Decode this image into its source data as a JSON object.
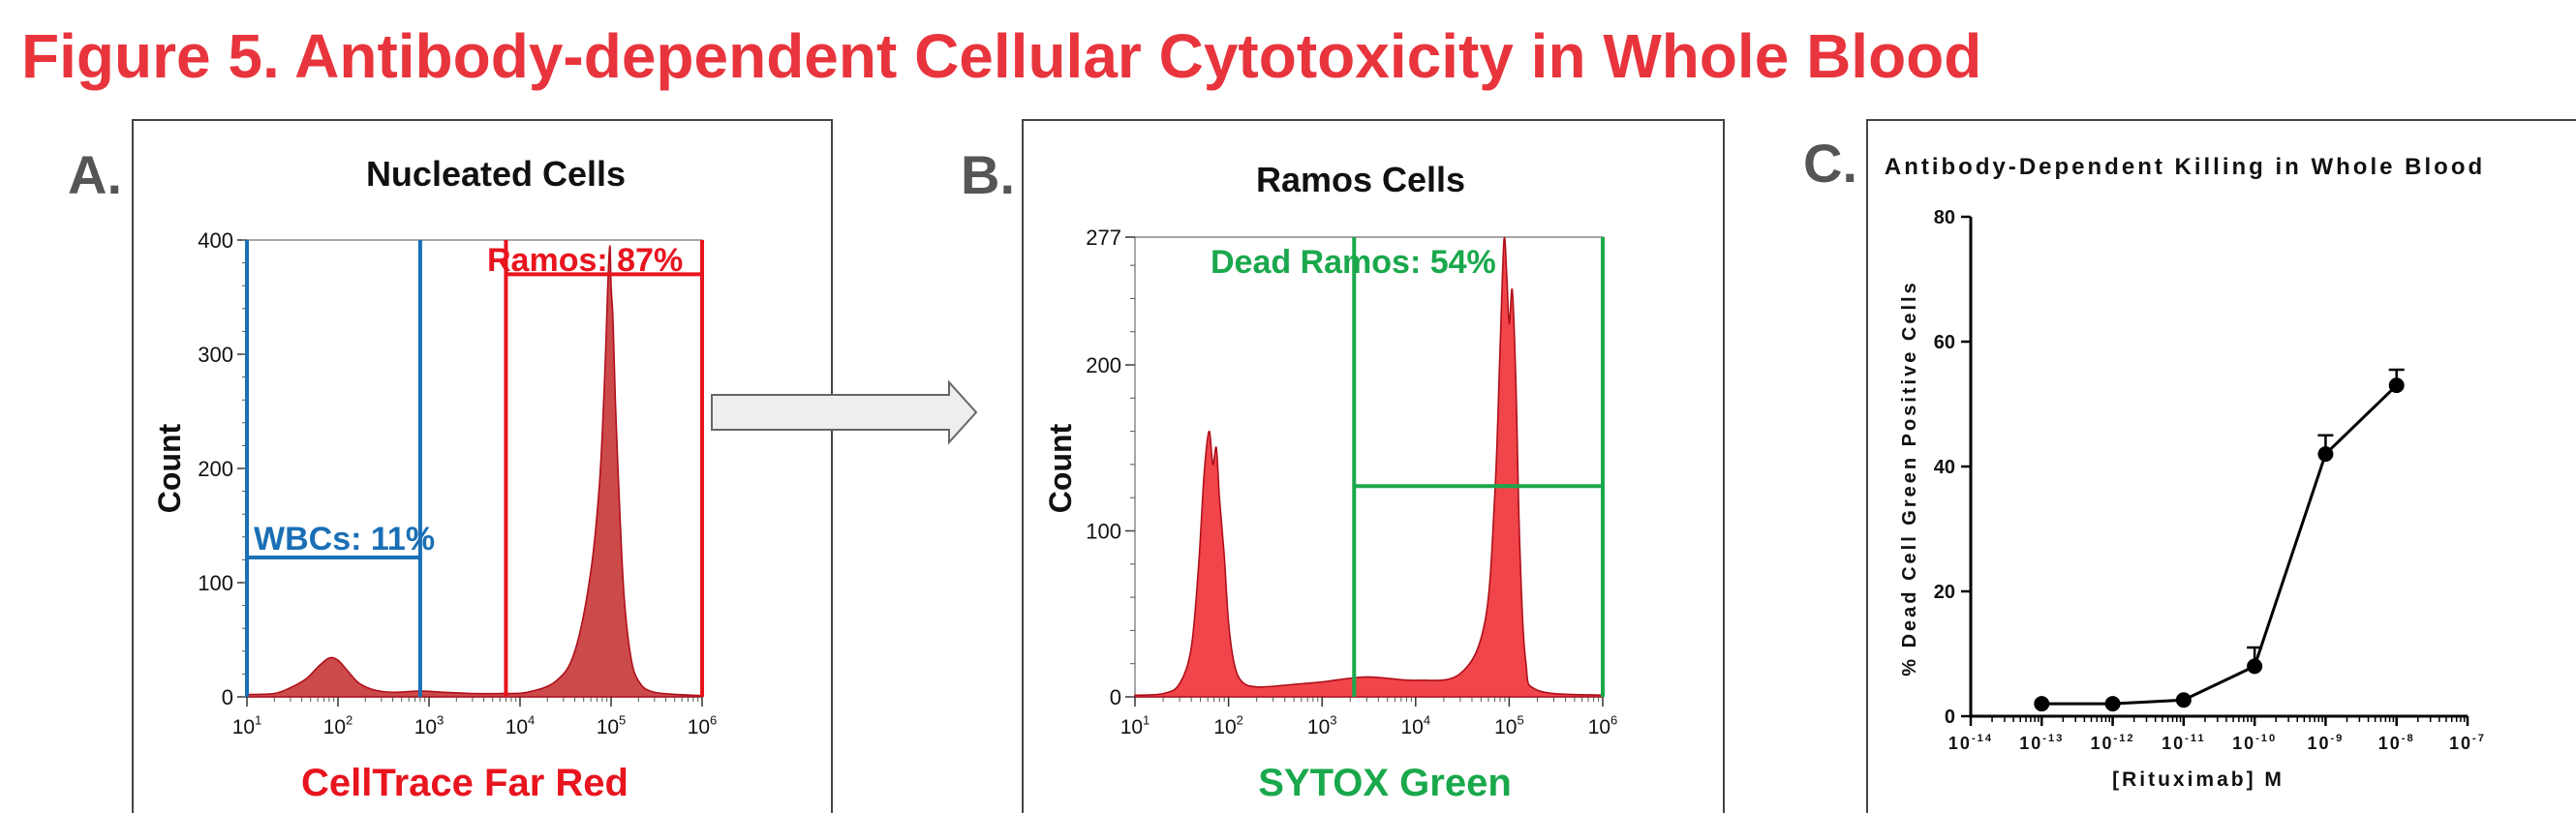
{
  "figure_title": "Figure 5. Antibody-dependent Cellular Cytotoxicity in Whole Blood",
  "colors": {
    "title_red": "#e8343c",
    "panel_letter": "#555555",
    "wbc_blue": "#1a6fb5",
    "ramos_red": "#e8141e",
    "dead_green": "#1aa84c",
    "hist_fill_a": "#cc4a4a",
    "hist_fill_b": "#f0454a",
    "arrow_fill": "#eeeeee"
  },
  "panels": {
    "a": {
      "letter": "A.",
      "title": "Nucleated Cells",
      "ylabel": "Count",
      "xlabel": "CellTrace Far Red",
      "wbc_gate_label": "WBCs: 11%",
      "ramos_gate_label": "Ramos: 87%"
    },
    "b": {
      "letter": "B.",
      "title": "Ramos Cells",
      "ylabel": "Count",
      "xlabel": "SYTOX Green",
      "dead_gate_label": "Dead Ramos: 54%"
    },
    "c": {
      "letter": "C.",
      "title": "Antibody-Dependent Killing in Whole Blood",
      "ylabel": "% Dead Cell Green Positive Cells",
      "xlabel": "[Rituximab] M"
    }
  },
  "chart_data": [
    {
      "type": "area",
      "title": "Nucleated Cells",
      "xlabel": "CellTrace Far Red",
      "ylabel": "Count",
      "x_scale": "log",
      "xlim": [
        10,
        1000000
      ],
      "ylim": [
        0,
        400
      ],
      "y_ticks": [
        0,
        100,
        200,
        300,
        400
      ],
      "x_tick_labels": [
        {
          "base": "10",
          "exp": "1"
        },
        {
          "base": "10",
          "exp": "2"
        },
        {
          "base": "10",
          "exp": "3"
        },
        {
          "base": "10",
          "exp": "4"
        },
        {
          "base": "10",
          "exp": "5"
        },
        {
          "base": "10",
          "exp": "6"
        }
      ],
      "gates": [
        {
          "name": "WBCs: 11%",
          "from": 10,
          "to": 800,
          "level": 122
        },
        {
          "name": "Ramos: 87%",
          "from": 7000,
          "to": 1000000,
          "level": 370
        }
      ],
      "series": [
        {
          "x": [
            10,
            20,
            30,
            45,
            60,
            80,
            100,
            130,
            170,
            250,
            400,
            800,
            1500,
            3000,
            6000,
            12000,
            25000,
            40000,
            60000,
            75000,
            85000,
            92000,
            97000,
            100000,
            105000,
            112000,
            125000,
            140000,
            165000,
            200000,
            300000,
            1000000
          ],
          "y": [
            2,
            3,
            8,
            16,
            26,
            34,
            32,
            22,
            12,
            6,
            4,
            5,
            4,
            3,
            3,
            4,
            14,
            40,
            110,
            190,
            280,
            360,
            395,
            360,
            330,
            255,
            160,
            85,
            35,
            14,
            4,
            1
          ]
        }
      ]
    },
    {
      "type": "area",
      "title": "Ramos Cells",
      "xlabel": "SYTOX Green",
      "ylabel": "Count",
      "x_scale": "log",
      "xlim": [
        10,
        1000000
      ],
      "ylim": [
        0,
        277
      ],
      "y_ticks": [
        0,
        100,
        200,
        277
      ],
      "x_tick_labels": [
        {
          "base": "10",
          "exp": "1"
        },
        {
          "base": "10",
          "exp": "2"
        },
        {
          "base": "10",
          "exp": "3"
        },
        {
          "base": "10",
          "exp": "4"
        },
        {
          "base": "10",
          "exp": "5"
        },
        {
          "base": "10",
          "exp": "6"
        }
      ],
      "gates": [
        {
          "name": "Dead Ramos: 54%",
          "from": 2200,
          "to": 1000000,
          "level": 127
        }
      ],
      "series": [
        {
          "x": [
            10,
            20,
            30,
            40,
            48,
            55,
            62,
            68,
            74,
            80,
            90,
            100,
            115,
            140,
            200,
            400,
            1000,
            3000,
            10000,
            30000,
            55000,
            70000,
            80000,
            88000,
            94000,
            100000,
            108000,
            118000,
            130000,
            150000,
            200000,
            1000000
          ],
          "y": [
            1,
            2,
            8,
            30,
            80,
            135,
            160,
            140,
            150,
            120,
            85,
            45,
            20,
            9,
            6,
            7,
            9,
            12,
            10,
            14,
            45,
            120,
            210,
            275,
            255,
            225,
            245,
            190,
            90,
            22,
            4,
            1
          ]
        }
      ]
    },
    {
      "type": "line",
      "title": "Antibody-Dependent Killing in Whole Blood",
      "xlabel": "[Rituximab] M",
      "ylabel": "% Dead Cell Green Positive Cells",
      "x_scale": "log",
      "xlim": [
        1e-14,
        1e-07
      ],
      "ylim": [
        0,
        80
      ],
      "y_ticks": [
        0,
        20,
        40,
        60,
        80
      ],
      "x_tick_labels": [
        {
          "base": "10",
          "exp": "-14"
        },
        {
          "base": "10",
          "exp": "-13"
        },
        {
          "base": "10",
          "exp": "-12"
        },
        {
          "base": "10",
          "exp": "-11"
        },
        {
          "base": "10",
          "exp": "-10"
        },
        {
          "base": "10",
          "exp": "-9"
        },
        {
          "base": "10",
          "exp": "-8"
        },
        {
          "base": "10",
          "exp": "-7"
        }
      ],
      "series": [
        {
          "x": [
            1e-13,
            1e-12,
            1e-11,
            1e-10,
            1e-09,
            1e-08
          ],
          "y": [
            2,
            2,
            2.6,
            8,
            42,
            53
          ],
          "error": [
            0,
            0,
            0,
            3,
            3,
            2.5
          ]
        }
      ]
    }
  ]
}
